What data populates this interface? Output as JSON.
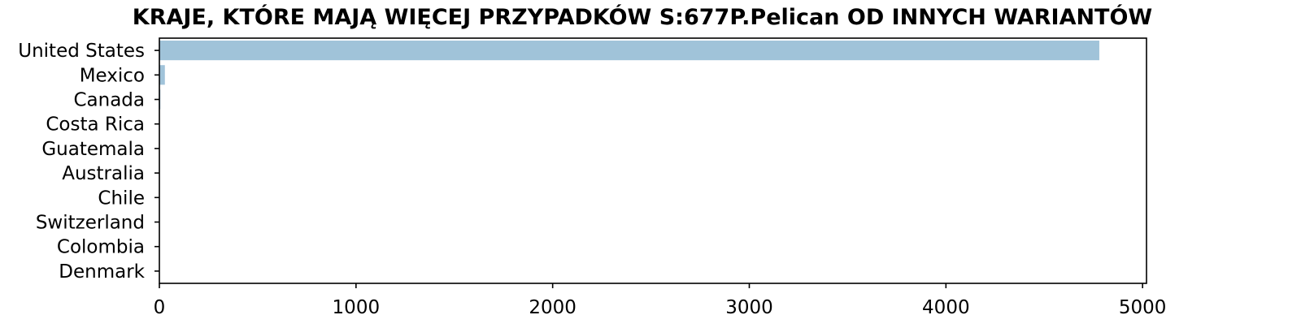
{
  "chart_data": {
    "type": "bar",
    "orientation": "horizontal",
    "title": "KRAJE, KTÓRE MAJĄ WIĘCEJ PRZYPADKÓW S:677P.Pelican OD INNYCH WARIANTÓW",
    "xlabel": "",
    "ylabel": "",
    "categories": [
      "United States",
      "Mexico",
      "Canada",
      "Costa Rica",
      "Guatemala",
      "Australia",
      "Chile",
      "Switzerland",
      "Colombia",
      "Denmark"
    ],
    "values": [
      4780,
      28,
      5,
      2,
      2,
      1,
      1,
      1,
      1,
      1
    ],
    "xlim": [
      0,
      5020
    ],
    "xticks": [
      0,
      1000,
      2000,
      3000,
      4000,
      5000
    ],
    "xtick_labels": [
      "0",
      "1000",
      "2000",
      "3000",
      "4000",
      "5000"
    ],
    "grid": false,
    "legend": "none",
    "bar_color": "#a0c3d9"
  }
}
